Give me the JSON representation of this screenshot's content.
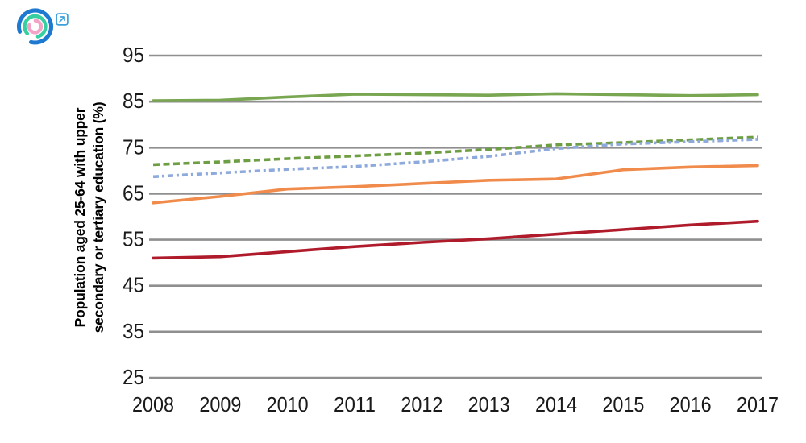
{
  "logo": {
    "name": "concentric-arcs-logo",
    "colors": {
      "outer_ring": "#1D7AD0",
      "middle_ring": "#36CFA0",
      "inner_ring": "#F2A3C6"
    },
    "external_link_color": "#3BA0DC"
  },
  "chart_data": {
    "type": "line",
    "title": "",
    "ylabel": "Population aged 25-64 with upper\nsecondary or tertiary education (%)",
    "xlabel": "",
    "x": [
      2008,
      2009,
      2010,
      2011,
      2012,
      2013,
      2014,
      2015,
      2016,
      2017
    ],
    "ylim": [
      25,
      95
    ],
    "yticks": [
      95,
      85,
      75,
      65,
      55,
      45,
      35,
      25
    ],
    "grid": "horizontal",
    "grid_color": "#8F8F8F",
    "text_color": "#1A1A1A",
    "legend": "none",
    "series": [
      {
        "name": "green-solid",
        "color": "#79A651",
        "style": "solid",
        "values": [
          85.2,
          85.3,
          86.0,
          86.6,
          86.5,
          86.4,
          86.7,
          86.5,
          86.3,
          86.5
        ]
      },
      {
        "name": "green-dashed",
        "color": "#6E9E43",
        "style": "dashed",
        "values": [
          71.3,
          71.9,
          72.6,
          73.2,
          73.8,
          74.6,
          75.6,
          76.1,
          76.7,
          77.3
        ]
      },
      {
        "name": "blue-dash-dot",
        "color": "#8EA9DB",
        "style": "dash-dot",
        "values": [
          68.7,
          69.5,
          70.3,
          70.9,
          71.9,
          73.1,
          74.8,
          75.8,
          76.3,
          76.8
        ]
      },
      {
        "name": "orange-solid",
        "color": "#F08B4B",
        "style": "solid",
        "values": [
          63.0,
          64.4,
          66.0,
          66.5,
          67.2,
          67.9,
          68.2,
          70.2,
          70.8,
          71.1
        ]
      },
      {
        "name": "dark-red-solid",
        "color": "#B01B2C",
        "style": "solid",
        "values": [
          51.0,
          51.3,
          52.4,
          53.5,
          54.4,
          55.2,
          56.2,
          57.2,
          58.2,
          59.0
        ]
      }
    ]
  }
}
